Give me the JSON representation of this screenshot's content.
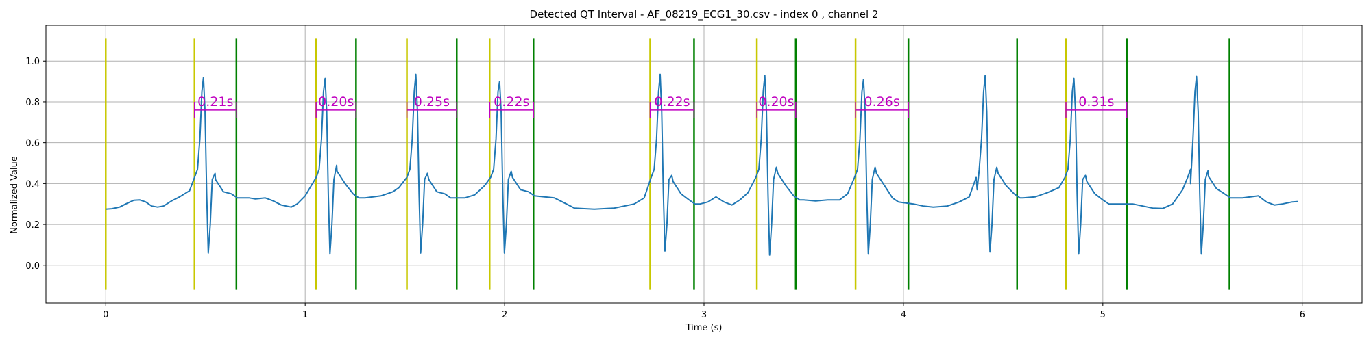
{
  "chart_data": {
    "type": "line",
    "title": "Detected QT Interval - AF_08219_ECG1_30.csv - index 0 , channel 2",
    "xlabel": "Time (s)",
    "ylabel": "Normalized Value",
    "xlim": [
      -0.3,
      6.3
    ],
    "ylim": [
      -0.185,
      1.175
    ],
    "xticks": [
      0,
      1,
      2,
      3,
      4,
      5,
      6
    ],
    "xtick_labels": [
      "0",
      "1",
      "2",
      "3",
      "4",
      "5",
      "6"
    ],
    "yticks": [
      0.0,
      0.2,
      0.4,
      0.6,
      0.8,
      1.0
    ],
    "ytick_labels": [
      "0.0",
      "0.2",
      "0.4",
      "0.6",
      "0.8",
      "1.0"
    ],
    "grid": true,
    "colors": {
      "signal": "#1f77b4",
      "q_onset": "#c8c800",
      "t_end": "#008000",
      "qt_annotation": "#c000c0"
    },
    "q_onsets": [
      0.0,
      0.445,
      1.055,
      1.51,
      1.925,
      2.73,
      3.265,
      3.76,
      4.815
    ],
    "t_ends": [
      0.655,
      1.255,
      1.76,
      2.145,
      2.95,
      3.46,
      4.025,
      4.57,
      5.12,
      5.635
    ],
    "marker_range": [
      -0.12,
      1.11
    ],
    "qt_intervals": [
      {
        "start": 0.445,
        "end": 0.655,
        "label": "0.21s"
      },
      {
        "start": 1.055,
        "end": 1.255,
        "label": "0.20s"
      },
      {
        "start": 1.51,
        "end": 1.76,
        "label": "0.25s"
      },
      {
        "start": 1.925,
        "end": 2.145,
        "label": "0.22s"
      },
      {
        "start": 2.73,
        "end": 2.95,
        "label": "0.22s"
      },
      {
        "start": 3.265,
        "end": 3.46,
        "label": "0.20s"
      },
      {
        "start": 3.76,
        "end": 4.025,
        "label": "0.26s"
      },
      {
        "start": 4.815,
        "end": 5.12,
        "label": "0.31s"
      }
    ],
    "qt_bracket_y": 0.76,
    "baseline_points": [
      [
        0.0,
        0.275
      ],
      [
        0.03,
        0.277
      ],
      [
        0.07,
        0.285
      ],
      [
        0.1,
        0.3
      ],
      [
        0.14,
        0.318
      ],
      [
        0.17,
        0.32
      ],
      [
        0.2,
        0.31
      ],
      [
        0.23,
        0.29
      ],
      [
        0.26,
        0.285
      ],
      [
        0.29,
        0.29
      ],
      [
        0.33,
        0.315
      ],
      [
        0.37,
        0.335
      ],
      [
        0.42,
        0.365
      ],
      [
        0.72,
        0.33
      ],
      [
        0.75,
        0.325
      ],
      [
        0.8,
        0.33
      ],
      [
        0.84,
        0.315
      ],
      [
        0.88,
        0.295
      ],
      [
        0.93,
        0.285
      ],
      [
        0.96,
        0.3
      ],
      [
        1.0,
        0.34
      ],
      [
        1.3,
        0.33
      ],
      [
        1.38,
        0.34
      ],
      [
        1.44,
        0.36
      ],
      [
        1.47,
        0.38
      ],
      [
        1.8,
        0.33
      ],
      [
        1.85,
        0.345
      ],
      [
        1.9,
        0.39
      ],
      [
        2.2,
        0.335
      ],
      [
        2.25,
        0.33
      ],
      [
        2.3,
        0.305
      ],
      [
        2.35,
        0.28
      ],
      [
        2.45,
        0.275
      ],
      [
        2.55,
        0.28
      ],
      [
        2.65,
        0.3
      ],
      [
        2.7,
        0.33
      ],
      [
        2.98,
        0.3
      ],
      [
        3.02,
        0.31
      ],
      [
        3.06,
        0.335
      ],
      [
        3.1,
        0.31
      ],
      [
        3.14,
        0.295
      ],
      [
        3.18,
        0.32
      ],
      [
        3.22,
        0.355
      ],
      [
        3.5,
        0.32
      ],
      [
        3.56,
        0.315
      ],
      [
        3.62,
        0.32
      ],
      [
        3.68,
        0.32
      ],
      [
        3.72,
        0.35
      ],
      [
        4.05,
        0.3
      ],
      [
        4.1,
        0.29
      ],
      [
        4.15,
        0.285
      ],
      [
        4.22,
        0.29
      ],
      [
        4.28,
        0.31
      ],
      [
        4.33,
        0.335
      ],
      [
        4.37,
        0.37
      ],
      [
        4.6,
        0.33
      ],
      [
        4.66,
        0.335
      ],
      [
        4.72,
        0.355
      ],
      [
        4.78,
        0.38
      ],
      [
        5.15,
        0.3
      ],
      [
        5.2,
        0.29
      ],
      [
        5.25,
        0.28
      ],
      [
        5.3,
        0.278
      ],
      [
        5.35,
        0.3
      ],
      [
        5.4,
        0.37
      ],
      [
        5.44,
        0.4
      ],
      [
        5.7,
        0.33
      ],
      [
        5.74,
        0.335
      ],
      [
        5.78,
        0.34
      ],
      [
        5.82,
        0.31
      ],
      [
        5.86,
        0.295
      ],
      [
        5.9,
        0.3
      ],
      [
        5.95,
        0.31
      ],
      [
        5.98,
        0.312
      ]
    ],
    "beats": [
      {
        "r": 0.49,
        "peak": 0.92,
        "s": 0.06,
        "t_peak": 0.45,
        "t_time": 0.55,
        "t_end_v": 0.33
      },
      {
        "r": 1.1,
        "peak": 0.915,
        "s": 0.055,
        "t_peak": 0.49,
        "t_time": 1.16,
        "t_end_v": 0.33
      },
      {
        "r": 1.555,
        "peak": 0.935,
        "s": 0.06,
        "t_peak": 0.45,
        "t_time": 1.62,
        "t_end_v": 0.33
      },
      {
        "r": 1.975,
        "peak": 0.9,
        "s": 0.06,
        "t_peak": 0.46,
        "t_time": 2.04,
        "t_end_v": 0.34
      },
      {
        "r": 2.78,
        "peak": 0.935,
        "s": 0.07,
        "t_peak": 0.44,
        "t_time": 2.845,
        "t_end_v": 0.3
      },
      {
        "r": 3.305,
        "peak": 0.93,
        "s": 0.05,
        "t_peak": 0.48,
        "t_time": 3.37,
        "t_end_v": 0.32
      },
      {
        "r": 3.8,
        "peak": 0.91,
        "s": 0.055,
        "t_peak": 0.48,
        "t_time": 3.865,
        "t_end_v": 0.31
      },
      {
        "r": 4.41,
        "peak": 0.93,
        "s": 0.065,
        "t_peak": 0.48,
        "t_time": 4.475,
        "t_end_v": 0.33
      },
      {
        "r": 4.855,
        "peak": 0.915,
        "s": 0.055,
        "t_peak": 0.44,
        "t_time": 4.92,
        "t_end_v": 0.3
      },
      {
        "r": 5.47,
        "peak": 0.925,
        "s": 0.055,
        "t_peak": 0.465,
        "t_time": 5.53,
        "t_end_v": 0.33
      }
    ]
  }
}
